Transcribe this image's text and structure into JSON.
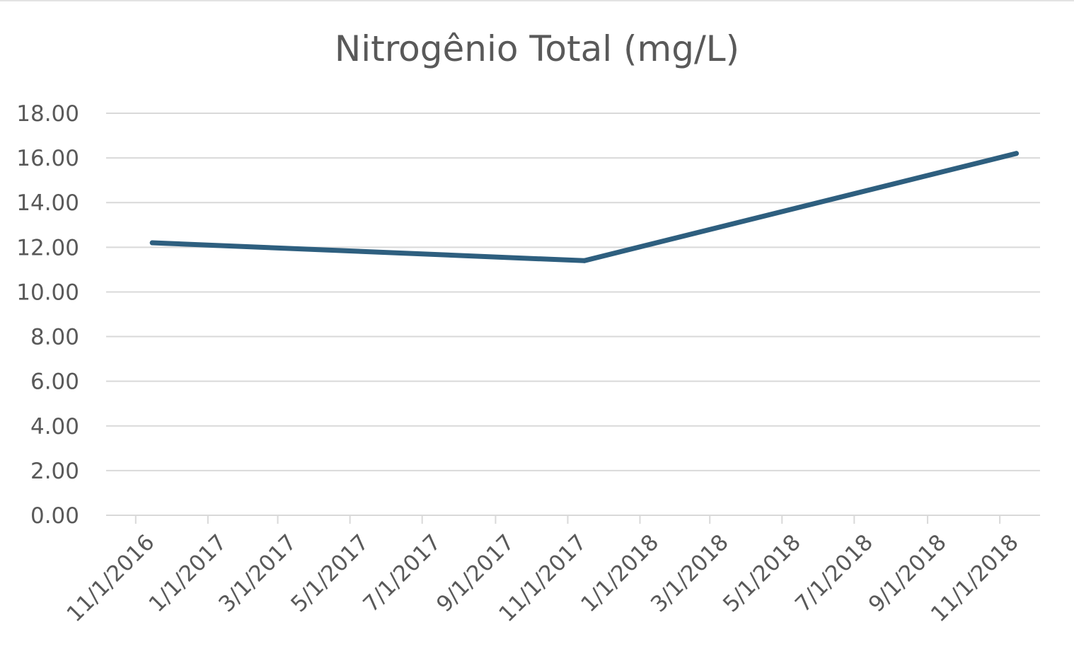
{
  "chart_data": {
    "type": "line",
    "title": "Nitrogênio Total (mg/L)",
    "xlabel": "",
    "ylabel": "",
    "ylim": [
      0,
      18
    ],
    "y_ticks": [
      "0.00",
      "2.00",
      "4.00",
      "6.00",
      "8.00",
      "10.00",
      "12.00",
      "14.00",
      "16.00",
      "18.00"
    ],
    "x_axis_type": "date",
    "x_range": [
      "2016-10-07",
      "2018-12-05"
    ],
    "x_ticks": [
      "11/1/2016",
      "1/1/2017",
      "3/1/2017",
      "5/1/2017",
      "7/1/2017",
      "9/1/2017",
      "11/1/2017",
      "1/1/2018",
      "3/1/2018",
      "5/1/2018",
      "7/1/2018",
      "9/1/2018",
      "11/1/2018"
    ],
    "x_tick_dates": [
      "2016-11-01",
      "2017-01-01",
      "2017-03-01",
      "2017-05-01",
      "2017-07-01",
      "2017-09-01",
      "2017-11-01",
      "2018-01-01",
      "2018-03-01",
      "2018-05-01",
      "2018-07-01",
      "2018-09-01",
      "2018-11-01"
    ],
    "grid": "horizontal",
    "legend": "none",
    "series": [
      {
        "color": "#2e5f7f",
        "points": [
          {
            "x": "2016-11-15",
            "y": 12.2
          },
          {
            "x": "2017-11-15",
            "y": 11.4
          },
          {
            "x": "2018-11-15",
            "y": 16.2
          }
        ]
      }
    ]
  },
  "colors": {
    "line": "#2e5f7f",
    "grid": "#d9d9d9",
    "text": "#595959"
  }
}
